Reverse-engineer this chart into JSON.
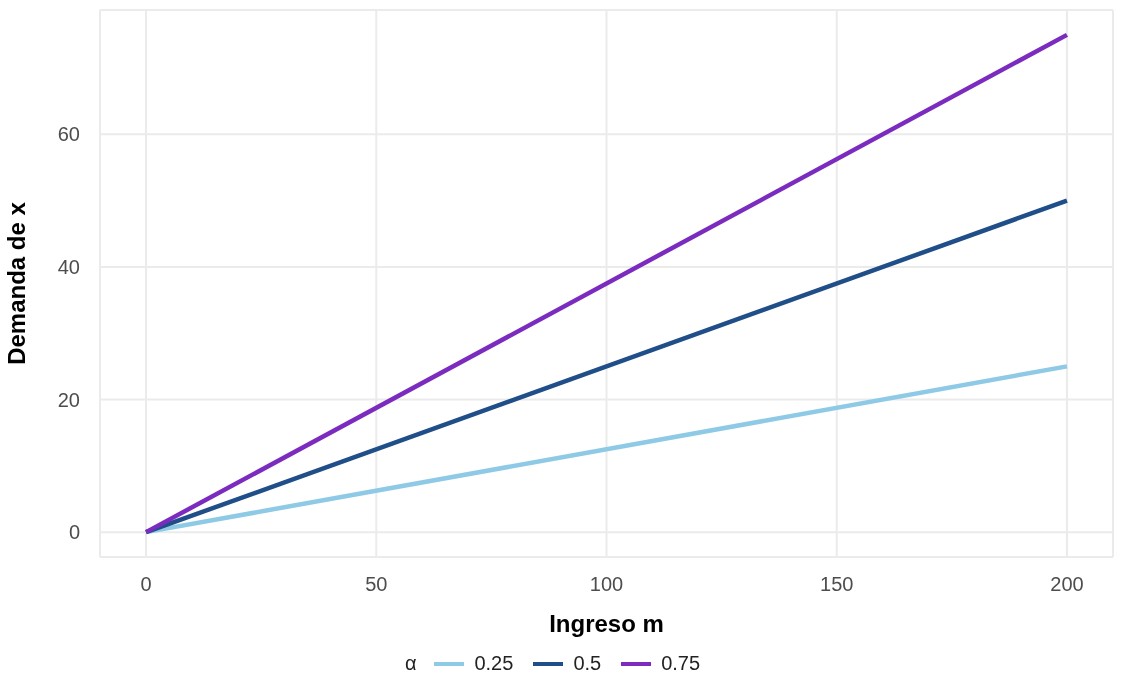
{
  "chart_data": {
    "type": "line",
    "xlabel": "Ingreso m",
    "ylabel": "Demanda de x",
    "legend_title": "α",
    "legend": "bottom",
    "grid": true,
    "line_style": "solid",
    "marker": "none",
    "x": [
      0,
      200
    ],
    "xlim": [
      -10,
      210
    ],
    "xticks": [
      0,
      50,
      100,
      150,
      200
    ],
    "ylim": [
      -3.75,
      78.75
    ],
    "yticks": [
      0,
      20,
      40,
      60
    ],
    "series": [
      {
        "name": "0.25",
        "color": "#8ecae6",
        "values": [
          0,
          25
        ]
      },
      {
        "name": "0.5",
        "color": "#1f4e89",
        "values": [
          0,
          50
        ]
      },
      {
        "name": "0.75",
        "color": "#7b2cbf",
        "values": [
          0,
          75
        ]
      }
    ]
  }
}
